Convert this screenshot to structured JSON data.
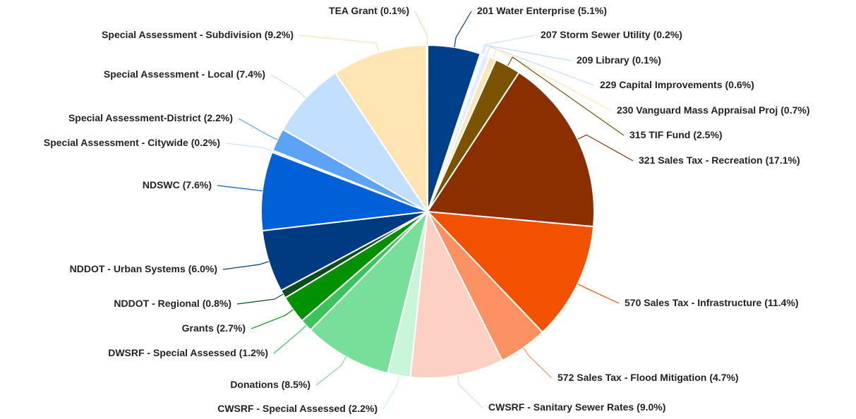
{
  "chart_data": {
    "type": "pie",
    "categories": [
      "201 Water Enterprise",
      "207 Storm Sewer Utility",
      "209 Library",
      "229 Capital Improvements",
      "230 Vanguard Mass Appraisal Proj",
      "315 TIF Fund",
      "321 Sales Tax - Recreation",
      "570 Sales Tax - Infrastructure",
      "572 Sales Tax - Flood Mitigation",
      "CWSRF - Sanitary Sewer Rates",
      "CWSRF - Special Assessed",
      "Donations",
      "DWSRF - Special Assessed",
      "Grants",
      "NDDOT - Regional",
      "NDDOT - Urban Systems",
      "NDSWC",
      "Special Assessment - Citywide",
      "Special Assessment-District",
      "Special Assessment - Local",
      "Special Assessment - Subdivision",
      "TEA Grant"
    ],
    "values": [
      5.1,
      0.2,
      0.1,
      0.6,
      0.7,
      2.5,
      17.1,
      11.4,
      4.7,
      9.0,
      2.2,
      8.5,
      1.2,
      2.7,
      0.8,
      6.0,
      7.6,
      0.2,
      2.2,
      7.4,
      9.2,
      0.1
    ],
    "value_labels": [
      "(5.1%)",
      "(0.2%)",
      "(0.1%)",
      "(0.6%)",
      "(0.7%)",
      "(2.5%)",
      "(17.1%)",
      "(11.4%)",
      "(4.7%)",
      "(9.0%)",
      "(2.2%)",
      "(8.5%)",
      "(1.2%)",
      "(2.7%)",
      "(0.8%)",
      "(6.0%)",
      "(7.6%)",
      "(0.2%)",
      "(2.2%)",
      "(7.4%)",
      "(9.2%)",
      "(0.1%)"
    ],
    "colors": [
      "#003f8a",
      "#cfe5ff",
      "#bcd9ff",
      "#e3eeff",
      "#ffe4b5",
      "#7a5200",
      "#8b2e00",
      "#f25100",
      "#fc9263",
      "#fdd0c4",
      "#c9f6d8",
      "#78df9b",
      "#3bc45c",
      "#009000",
      "#0b4d19",
      "#003a80",
      "#0060d8",
      "#cfe4ff",
      "#5ba3f5",
      "#c2dfff",
      "#ffe4b4",
      "#ffd79a"
    ]
  }
}
